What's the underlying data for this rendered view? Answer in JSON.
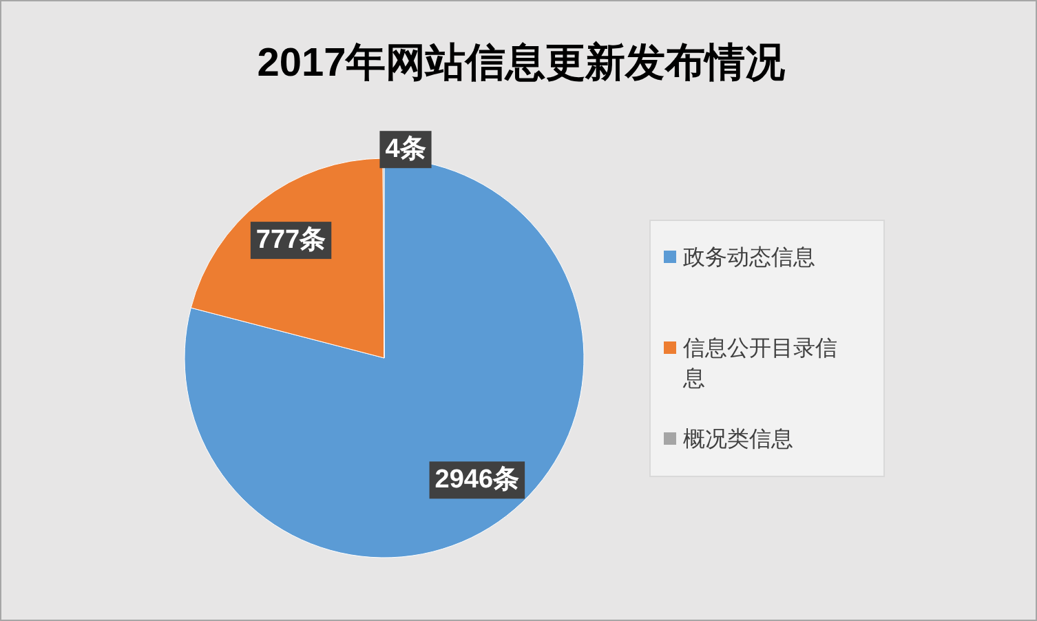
{
  "chart_data": {
    "type": "pie",
    "title": "2017年网站信息更新发布情况",
    "categories": [
      "政务动态信息",
      "信息公开目录信息",
      "概况类信息"
    ],
    "values": [
      2946,
      777,
      4
    ],
    "colors": [
      "#5b9bd5",
      "#ed7d31",
      "#a5a5a5"
    ],
    "value_labels": [
      "2946条",
      "777条",
      "4条"
    ],
    "legend": "right"
  }
}
